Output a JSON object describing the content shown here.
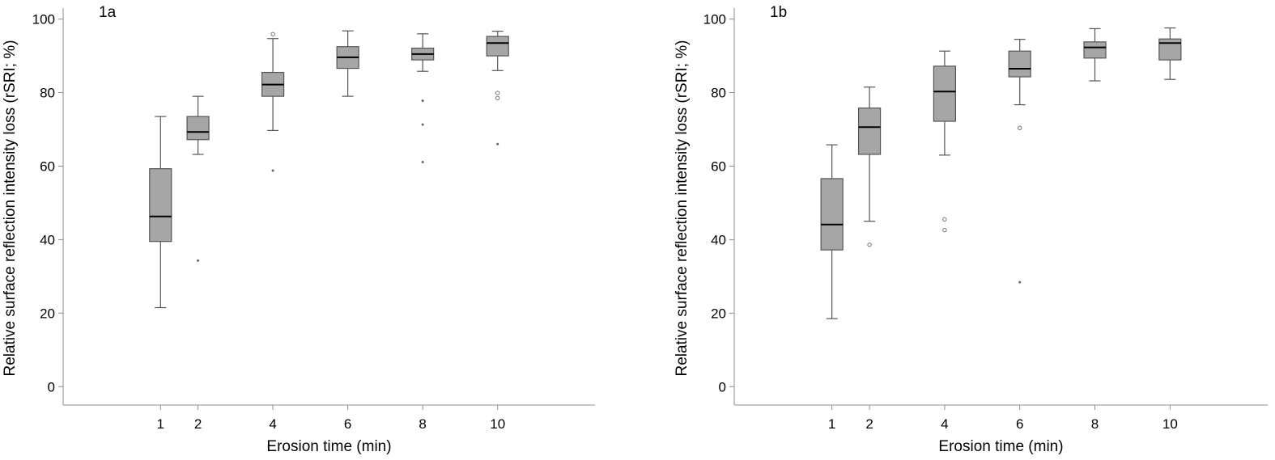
{
  "chart_data": [
    {
      "type": "box",
      "panel_label": "1a",
      "xlabel": "Erosion time (min)",
      "ylabel": "Relative surface reflection intensity loss (rSRI; %)",
      "ylim": [
        -5,
        103
      ],
      "yticks": [
        0,
        20,
        40,
        60,
        80,
        100
      ],
      "xlim": [
        -1.6,
        12.6
      ],
      "x_tick_labels": [
        "1",
        "2",
        "4",
        "6",
        "8",
        "10"
      ],
      "grid": false,
      "box_color": "#a6a6a6",
      "series": [
        {
          "x": 1,
          "whisker_low": 21.5,
          "q1": 39.5,
          "median": 46.3,
          "q3": 59.3,
          "whisker_high": 73.5,
          "outliers": [],
          "extremes": []
        },
        {
          "x": 2,
          "whisker_low": 63.2,
          "q1": 67.2,
          "median": 69.3,
          "q3": 73.5,
          "whisker_high": 79.0,
          "outliers": [],
          "extremes": [
            34.3
          ]
        },
        {
          "x": 4,
          "whisker_low": 69.7,
          "q1": 79.0,
          "median": 82.2,
          "q3": 85.5,
          "whisker_high": 94.7,
          "outliers": [
            95.9
          ],
          "extremes": [
            58.8
          ]
        },
        {
          "x": 6,
          "whisker_low": 79.0,
          "q1": 86.6,
          "median": 89.6,
          "q3": 92.5,
          "whisker_high": 96.8,
          "outliers": [],
          "extremes": []
        },
        {
          "x": 8,
          "whisker_low": 85.8,
          "q1": 88.9,
          "median": 90.5,
          "q3": 92.1,
          "whisker_high": 96.0,
          "outliers": [],
          "extremes": [
            77.8,
            71.3,
            61.1
          ]
        },
        {
          "x": 10,
          "whisker_low": 86.0,
          "q1": 90.0,
          "median": 93.5,
          "q3": 95.3,
          "whisker_high": 96.7,
          "outliers": [
            79.9,
            78.5
          ],
          "extremes": [
            66.0
          ]
        }
      ]
    },
    {
      "type": "box",
      "panel_label": "1b",
      "xlabel": "Erosion time (min)",
      "ylabel": "Relative surface reflection intensity loss (rSRI; %)",
      "ylim": [
        -5,
        103
      ],
      "yticks": [
        0,
        20,
        40,
        60,
        80,
        100
      ],
      "xlim": [
        -1.6,
        12.6
      ],
      "x_tick_labels": [
        "1",
        "2",
        "4",
        "6",
        "8",
        "10"
      ],
      "grid": false,
      "box_color": "#a6a6a6",
      "series": [
        {
          "x": 1,
          "whisker_low": 18.5,
          "q1": 37.2,
          "median": 44.1,
          "q3": 56.6,
          "whisker_high": 65.8,
          "outliers": [],
          "extremes": []
        },
        {
          "x": 2,
          "whisker_low": 45.0,
          "q1": 63.2,
          "median": 70.6,
          "q3": 75.8,
          "whisker_high": 81.5,
          "outliers": [
            38.6
          ],
          "extremes": []
        },
        {
          "x": 4,
          "whisker_low": 63.0,
          "q1": 72.2,
          "median": 80.3,
          "q3": 87.2,
          "whisker_high": 91.3,
          "outliers": [
            45.5,
            42.6
          ],
          "extremes": []
        },
        {
          "x": 6,
          "whisker_low": 76.7,
          "q1": 84.3,
          "median": 86.5,
          "q3": 91.3,
          "whisker_high": 94.5,
          "outliers": [
            70.4
          ],
          "extremes": [
            28.4
          ]
        },
        {
          "x": 8,
          "whisker_low": 83.2,
          "q1": 89.4,
          "median": 92.3,
          "q3": 93.8,
          "whisker_high": 97.4,
          "outliers": [],
          "extremes": []
        },
        {
          "x": 10,
          "whisker_low": 83.6,
          "q1": 88.9,
          "median": 93.5,
          "q3": 94.6,
          "whisker_high": 97.6,
          "outliers": [],
          "extremes": []
        }
      ]
    }
  ]
}
